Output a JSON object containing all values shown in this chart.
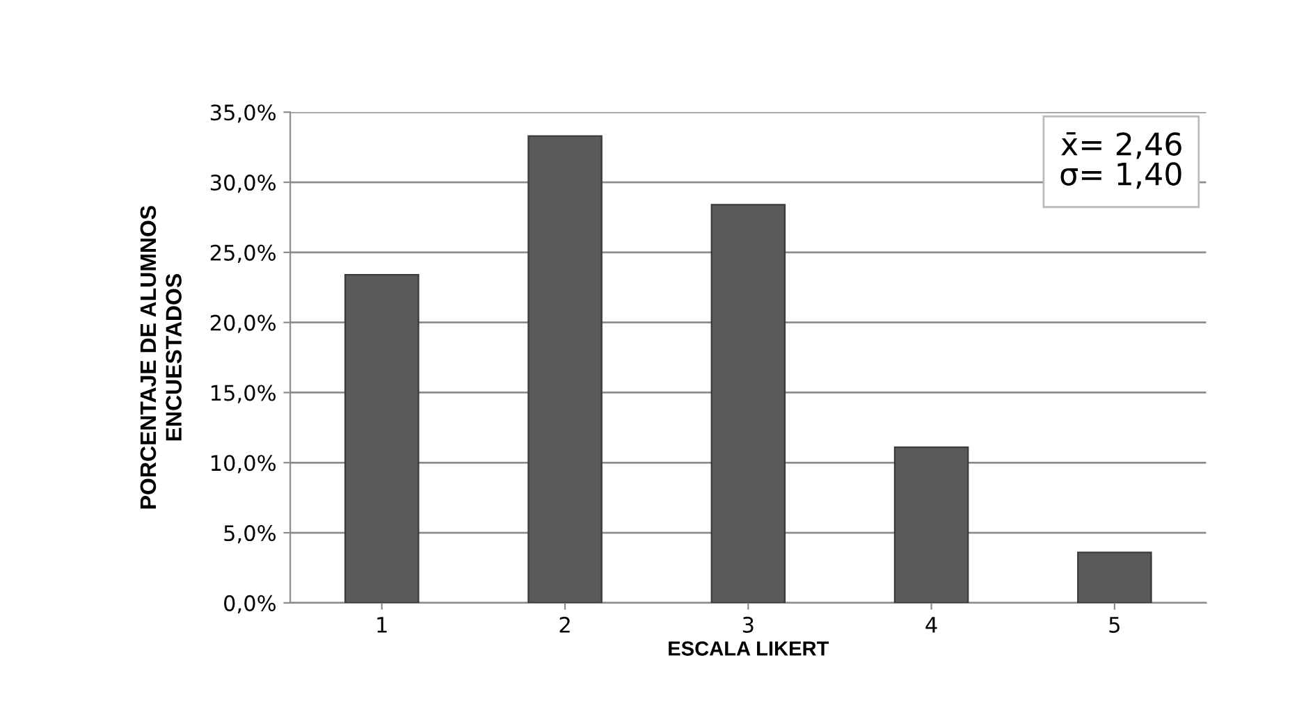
{
  "chart_data": {
    "type": "bar",
    "xlabel": "ESCALA LIKERT",
    "ylabel": "PORCENTAJE DE ALUMNOS\nENCUESTADOS",
    "categories": [
      "1",
      "2",
      "3",
      "4",
      "5"
    ],
    "values": [
      23.4,
      33.3,
      28.4,
      11.1,
      3.6
    ],
    "color": "#5a5a5a",
    "ylim": [
      0,
      35
    ],
    "yticks": [
      {
        "value": 0,
        "label": "0,0%"
      },
      {
        "value": 5,
        "label": "5,0%"
      },
      {
        "value": 10,
        "label": "10,0%"
      },
      {
        "value": 15,
        "label": "15,0%"
      },
      {
        "value": 20,
        "label": "20,0%"
      },
      {
        "value": 25,
        "label": "25,0%"
      },
      {
        "value": 30,
        "label": "30,0%"
      },
      {
        "value": 35,
        "label": "35,0%"
      }
    ],
    "grid": "y",
    "annotations": [
      "x̄= 2,46\nσ= 1,40"
    ]
  }
}
